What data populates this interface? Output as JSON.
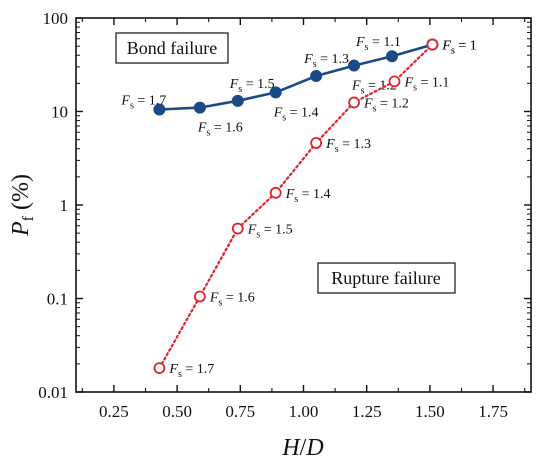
{
  "chart_data": {
    "type": "line",
    "xlabel": "H/D",
    "ylabel": "P_f (%)",
    "ylabel_parts": {
      "main": "P",
      "sub": "f",
      "unit": " (%)"
    },
    "xlabel_parts": {
      "a": "H",
      "slash": "/",
      "b": "D"
    },
    "xlim": [
      0.1,
      1.9
    ],
    "ylim": [
      0.01,
      100
    ],
    "yscale": "log",
    "x_ticks": [
      "0.25",
      "0.50",
      "0.75",
      "1.00",
      "1.25",
      "1.50",
      "1.75"
    ],
    "x_tick_values": [
      0.25,
      0.5,
      0.75,
      1.0,
      1.25,
      1.5,
      1.75
    ],
    "y_ticks": [
      "0.01",
      "0.1",
      "1",
      "10",
      "100"
    ],
    "y_tick_values": [
      0.01,
      0.1,
      1,
      10,
      100
    ],
    "grid": false,
    "annotations": [
      {
        "text": "Bond failure",
        "x": 0.45,
        "y": 55
      },
      {
        "text": "Rupture failure",
        "x": 1.36,
        "y": 0.2
      }
    ],
    "series": [
      {
        "label": "Bond failure",
        "color": "#1b4a87",
        "marker": "filled-circle",
        "line": "solid",
        "points": [
          {
            "x": 0.43,
            "y": 10.5,
            "fs": "1.7"
          },
          {
            "x": 0.59,
            "y": 11,
            "fs": "1.6"
          },
          {
            "x": 0.74,
            "y": 13,
            "fs": "1.5"
          },
          {
            "x": 0.89,
            "y": 16,
            "fs": "1.4"
          },
          {
            "x": 1.05,
            "y": 24,
            "fs": "1.3"
          },
          {
            "x": 1.2,
            "y": 31,
            "fs": "1.2"
          },
          {
            "x": 1.35,
            "y": 39,
            "fs": "1.1"
          },
          {
            "x": 1.51,
            "y": 52,
            "fs": "1"
          }
        ]
      },
      {
        "label": "Rupture failure",
        "color": "#e0232d",
        "marker": "open-circle",
        "line": "dotted",
        "points": [
          {
            "x": 0.43,
            "y": 0.018,
            "fs": "1.7"
          },
          {
            "x": 0.59,
            "y": 0.105,
            "fs": "1.6"
          },
          {
            "x": 0.74,
            "y": 0.56,
            "fs": "1.5"
          },
          {
            "x": 0.89,
            "y": 1.35,
            "fs": "1.4"
          },
          {
            "x": 1.05,
            "y": 4.6,
            "fs": "1.3"
          },
          {
            "x": 1.2,
            "y": 12.5,
            "fs": "1.2"
          },
          {
            "x": 1.36,
            "y": 21,
            "fs": "1.1"
          },
          {
            "x": 1.51,
            "y": 52,
            "fs": "1"
          }
        ]
      }
    ]
  }
}
